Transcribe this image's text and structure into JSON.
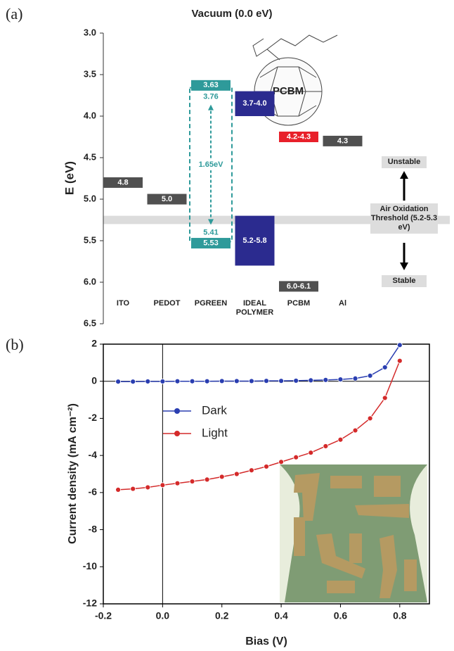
{
  "chart_data": [
    {
      "type": "energy-level",
      "panel_label": "(a)",
      "title": "Vacuum (0.0 eV)",
      "y_label": "E (eV)",
      "ylim": [
        3.0,
        6.5
      ],
      "y_inverted": true,
      "yticks": [
        {
          "value": 3,
          "label": "3.0"
        },
        3.5,
        {
          "value": 4,
          "label": "4.0"
        },
        4.5,
        {
          "value": 5,
          "label": "5.0"
        },
        5.5,
        {
          "value": 6,
          "label": "6.0"
        },
        6.5
      ],
      "columns": [
        {
          "name": "ITO",
          "levels": [
            {
              "values": [
                4.8
              ],
              "label": "4.8",
              "color": "#505050"
            }
          ]
        },
        {
          "name": "PEDOT",
          "levels": [
            {
              "values": [
                5.0
              ],
              "label": "5.0",
              "color": "#505050"
            }
          ]
        },
        {
          "name": "PGREEN",
          "levels": [
            {
              "values": [
                3.63
              ],
              "label": "3.63",
              "color": "#2e9a9a"
            },
            {
              "values": [
                5.53
              ],
              "label": "5.53",
              "color": "#2e9a9a"
            }
          ],
          "gap": {
            "values": [
              3.76,
              5.41
            ],
            "value_labels": [
              "3.76",
              "5.41"
            ],
            "label": "1.65eV",
            "color": "#2e9a9a"
          }
        },
        {
          "name": "IDEAL POLYMER",
          "levels": [
            {
              "values": [
                3.7,
                4.0
              ],
              "label": "3.7-4.0",
              "color": "#2b2b8f"
            },
            {
              "values": [
                5.2,
                5.8
              ],
              "label": "5.2-5.8",
              "color": "#2b2b8f"
            }
          ]
        },
        {
          "name": "PCBM",
          "levels": [
            {
              "values": [
                4.2,
                4.3
              ],
              "label": "4.2-4.3",
              "color": "#e8202a"
            },
            {
              "values": [
                6.0,
                6.1
              ],
              "label": "6.0-6.1",
              "color": "#505050"
            }
          ]
        },
        {
          "name": "Al",
          "levels": [
            {
              "values": [
                4.3
              ],
              "label": "4.3",
              "color": "#505050"
            }
          ]
        }
      ],
      "threshold_band": {
        "values": [
          5.2,
          5.3
        ],
        "color": "#dcdcdc"
      },
      "molecule_label": "PCBM",
      "stability": {
        "upper": "Unstable",
        "middle": "Air Oxidation Threshold (5.2-5.3 eV)",
        "lower": "Stable"
      }
    },
    {
      "type": "line",
      "panel_label": "(b)",
      "x_label": "Bias (V)",
      "y_label": "Current density (mA cm⁻²)",
      "xlim": [
        -0.2,
        0.9
      ],
      "xticks": [
        -0.2,
        {
          "value": 0,
          "label": "0.0"
        },
        0.2,
        0.4,
        0.6,
        0.8
      ],
      "ylim": [
        -12,
        2
      ],
      "yticks": [
        -12,
        -10,
        -8,
        -6,
        -4,
        -2,
        0,
        2
      ],
      "zero_lines": true,
      "legend": "upper left",
      "x": [
        -0.15,
        -0.1,
        -0.05,
        0,
        0.05,
        0.1,
        0.15,
        0.2,
        0.25,
        0.3,
        0.35,
        0.4,
        0.45,
        0.5,
        0.55,
        0.6,
        0.65,
        0.7,
        0.75,
        0.8
      ],
      "series": [
        {
          "name": "Dark",
          "color": "#2a3eb1",
          "values": [
            -0.02,
            -0.02,
            -0.01,
            -0.01,
            0,
            0,
            0,
            0.01,
            0.01,
            0.01,
            0.02,
            0.02,
            0.03,
            0.05,
            0.07,
            0.1,
            0.15,
            0.3,
            0.75,
            1.95
          ]
        },
        {
          "name": "Light",
          "color": "#d42a2a",
          "values": [
            -5.85,
            -5.8,
            -5.72,
            -5.6,
            -5.5,
            -5.4,
            -5.3,
            -5.15,
            -5.0,
            -4.8,
            -4.6,
            -4.35,
            -4.1,
            -3.85,
            -3.5,
            -3.15,
            -2.65,
            -2.0,
            -0.9,
            1.1
          ]
        }
      ]
    }
  ]
}
